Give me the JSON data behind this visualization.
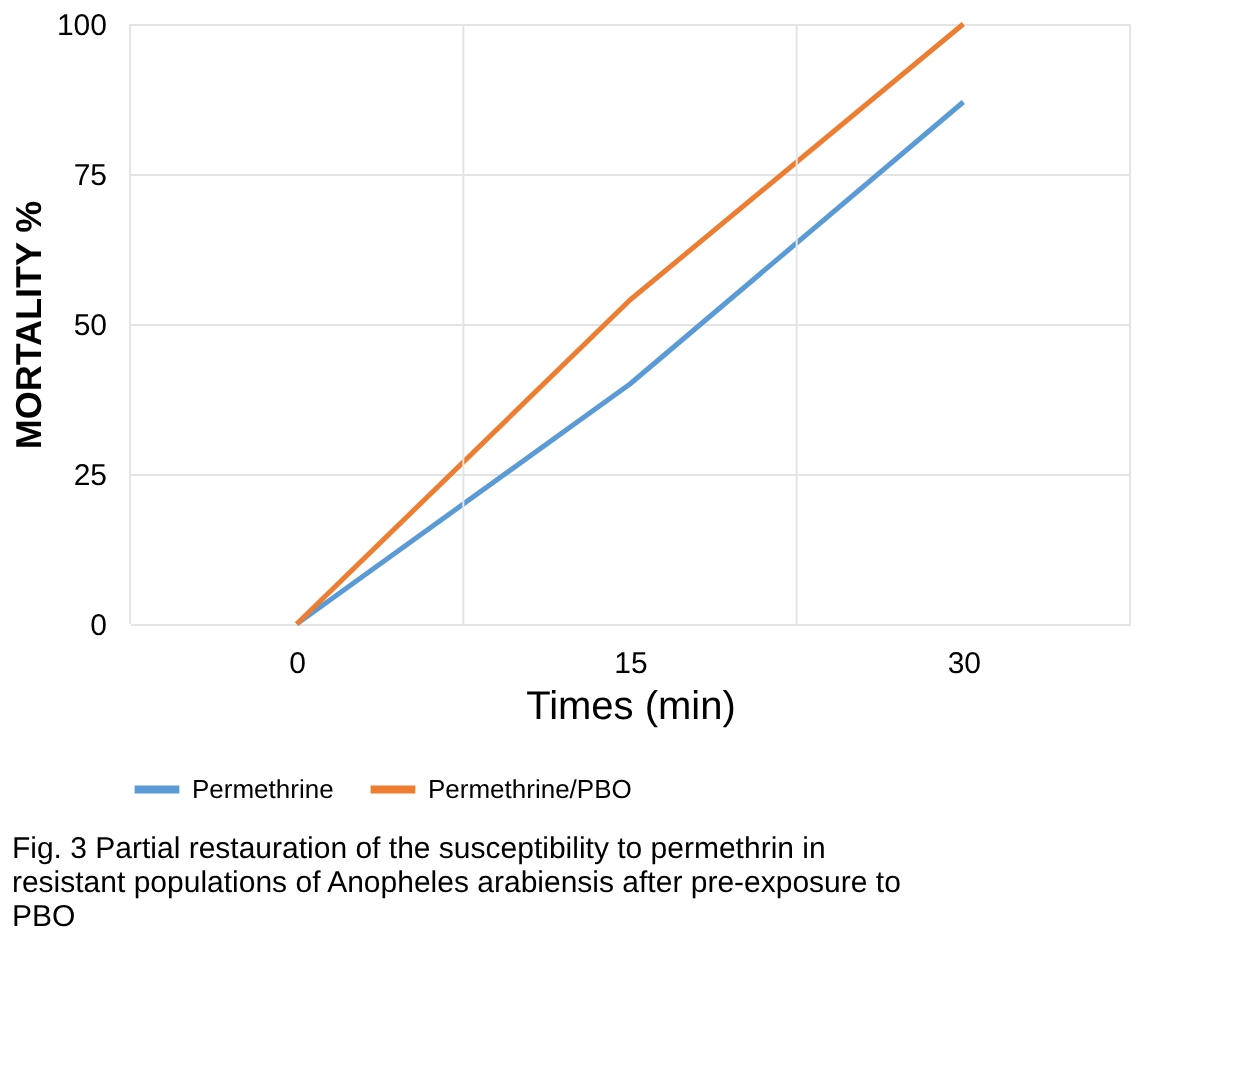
{
  "chart_data": {
    "type": "line",
    "categories": [
      "0",
      "15",
      "30"
    ],
    "series": [
      {
        "name": "Permethrine",
        "color": "#5b9bd5",
        "values": [
          0,
          40,
          87
        ]
      },
      {
        "name": "Permethrine/PBO",
        "color": "#ed7d31",
        "values": [
          0,
          54,
          100
        ]
      }
    ],
    "xlabel": "Times (min)",
    "ylabel": "MORTALITY %",
    "ylim": [
      0,
      100
    ],
    "yticks": [
      0,
      25,
      50,
      75,
      100
    ],
    "grid": true,
    "legend": "bottom",
    "marker": "none",
    "line_style": "solid",
    "annotations": [
      "Fig. 3  Partial restauration of the susceptibility to permethrin in resistant populations of Anopheles arabiensis after pre-exposure to PBO"
    ]
  }
}
